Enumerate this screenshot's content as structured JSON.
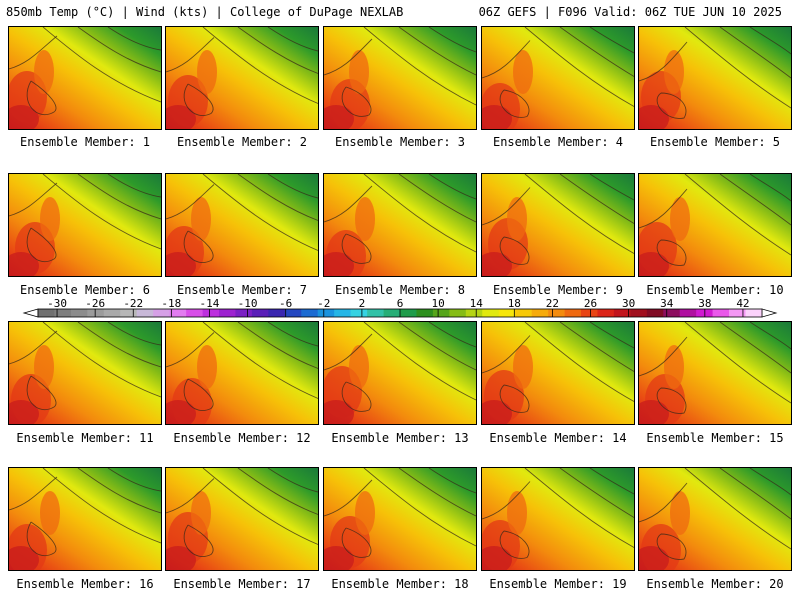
{
  "header": {
    "left": "850mb Temp (°C) | Wind (kts) | College of DuPage NEXLAB",
    "right": "06Z GEFS | F096 Valid: 06Z TUE JUN 10 2025"
  },
  "caption_prefix": "Ensemble Member: ",
  "members": [
    "1",
    "2",
    "3",
    "4",
    "5",
    "6",
    "7",
    "8",
    "9",
    "10",
    "11",
    "12",
    "13",
    "14",
    "15",
    "16",
    "17",
    "18",
    "19",
    "20"
  ],
  "colorbar": {
    "tick_labels": [
      "-30",
      "-26",
      "-22",
      "-18",
      "-14",
      "-10",
      "-6",
      "-2",
      "2",
      "6",
      "10",
      "14",
      "18",
      "22",
      "26",
      "30",
      "34",
      "38",
      "42"
    ],
    "tick_values": [
      -30,
      -26,
      -22,
      -18,
      -14,
      -10,
      -6,
      -2,
      2,
      6,
      10,
      14,
      18,
      22,
      26,
      30,
      34,
      38,
      42
    ],
    "min": -32,
    "max": 44,
    "step": 2,
    "colors": [
      "#707070",
      "#7e7e7e",
      "#8c8c8c",
      "#9b9b9b",
      "#a9a9a9",
      "#b7b7b7",
      "#c8b8d8",
      "#d6a0e6",
      "#e27cf0",
      "#d84ee8",
      "#bd2fde",
      "#9d22d0",
      "#7b1fc4",
      "#5a1eb8",
      "#3a26b0",
      "#2447c0",
      "#1c6bd2",
      "#1a93de",
      "#25b6e6",
      "#36d2e2",
      "#32c2a8",
      "#27ae77",
      "#1f9c4a",
      "#2d8f1e",
      "#56a51a",
      "#86bc16",
      "#b5d414",
      "#e1e90f",
      "#f6e60a",
      "#f7c908",
      "#f6ab0a",
      "#f38b0d",
      "#ef6910",
      "#e84414",
      "#db2418",
      "#c2151d",
      "#a00f1e",
      "#800b24",
      "#8c0e5e",
      "#b010a0",
      "#d01ad0",
      "#ea58ea",
      "#f498f4",
      "#fbd2fb"
    ]
  }
}
